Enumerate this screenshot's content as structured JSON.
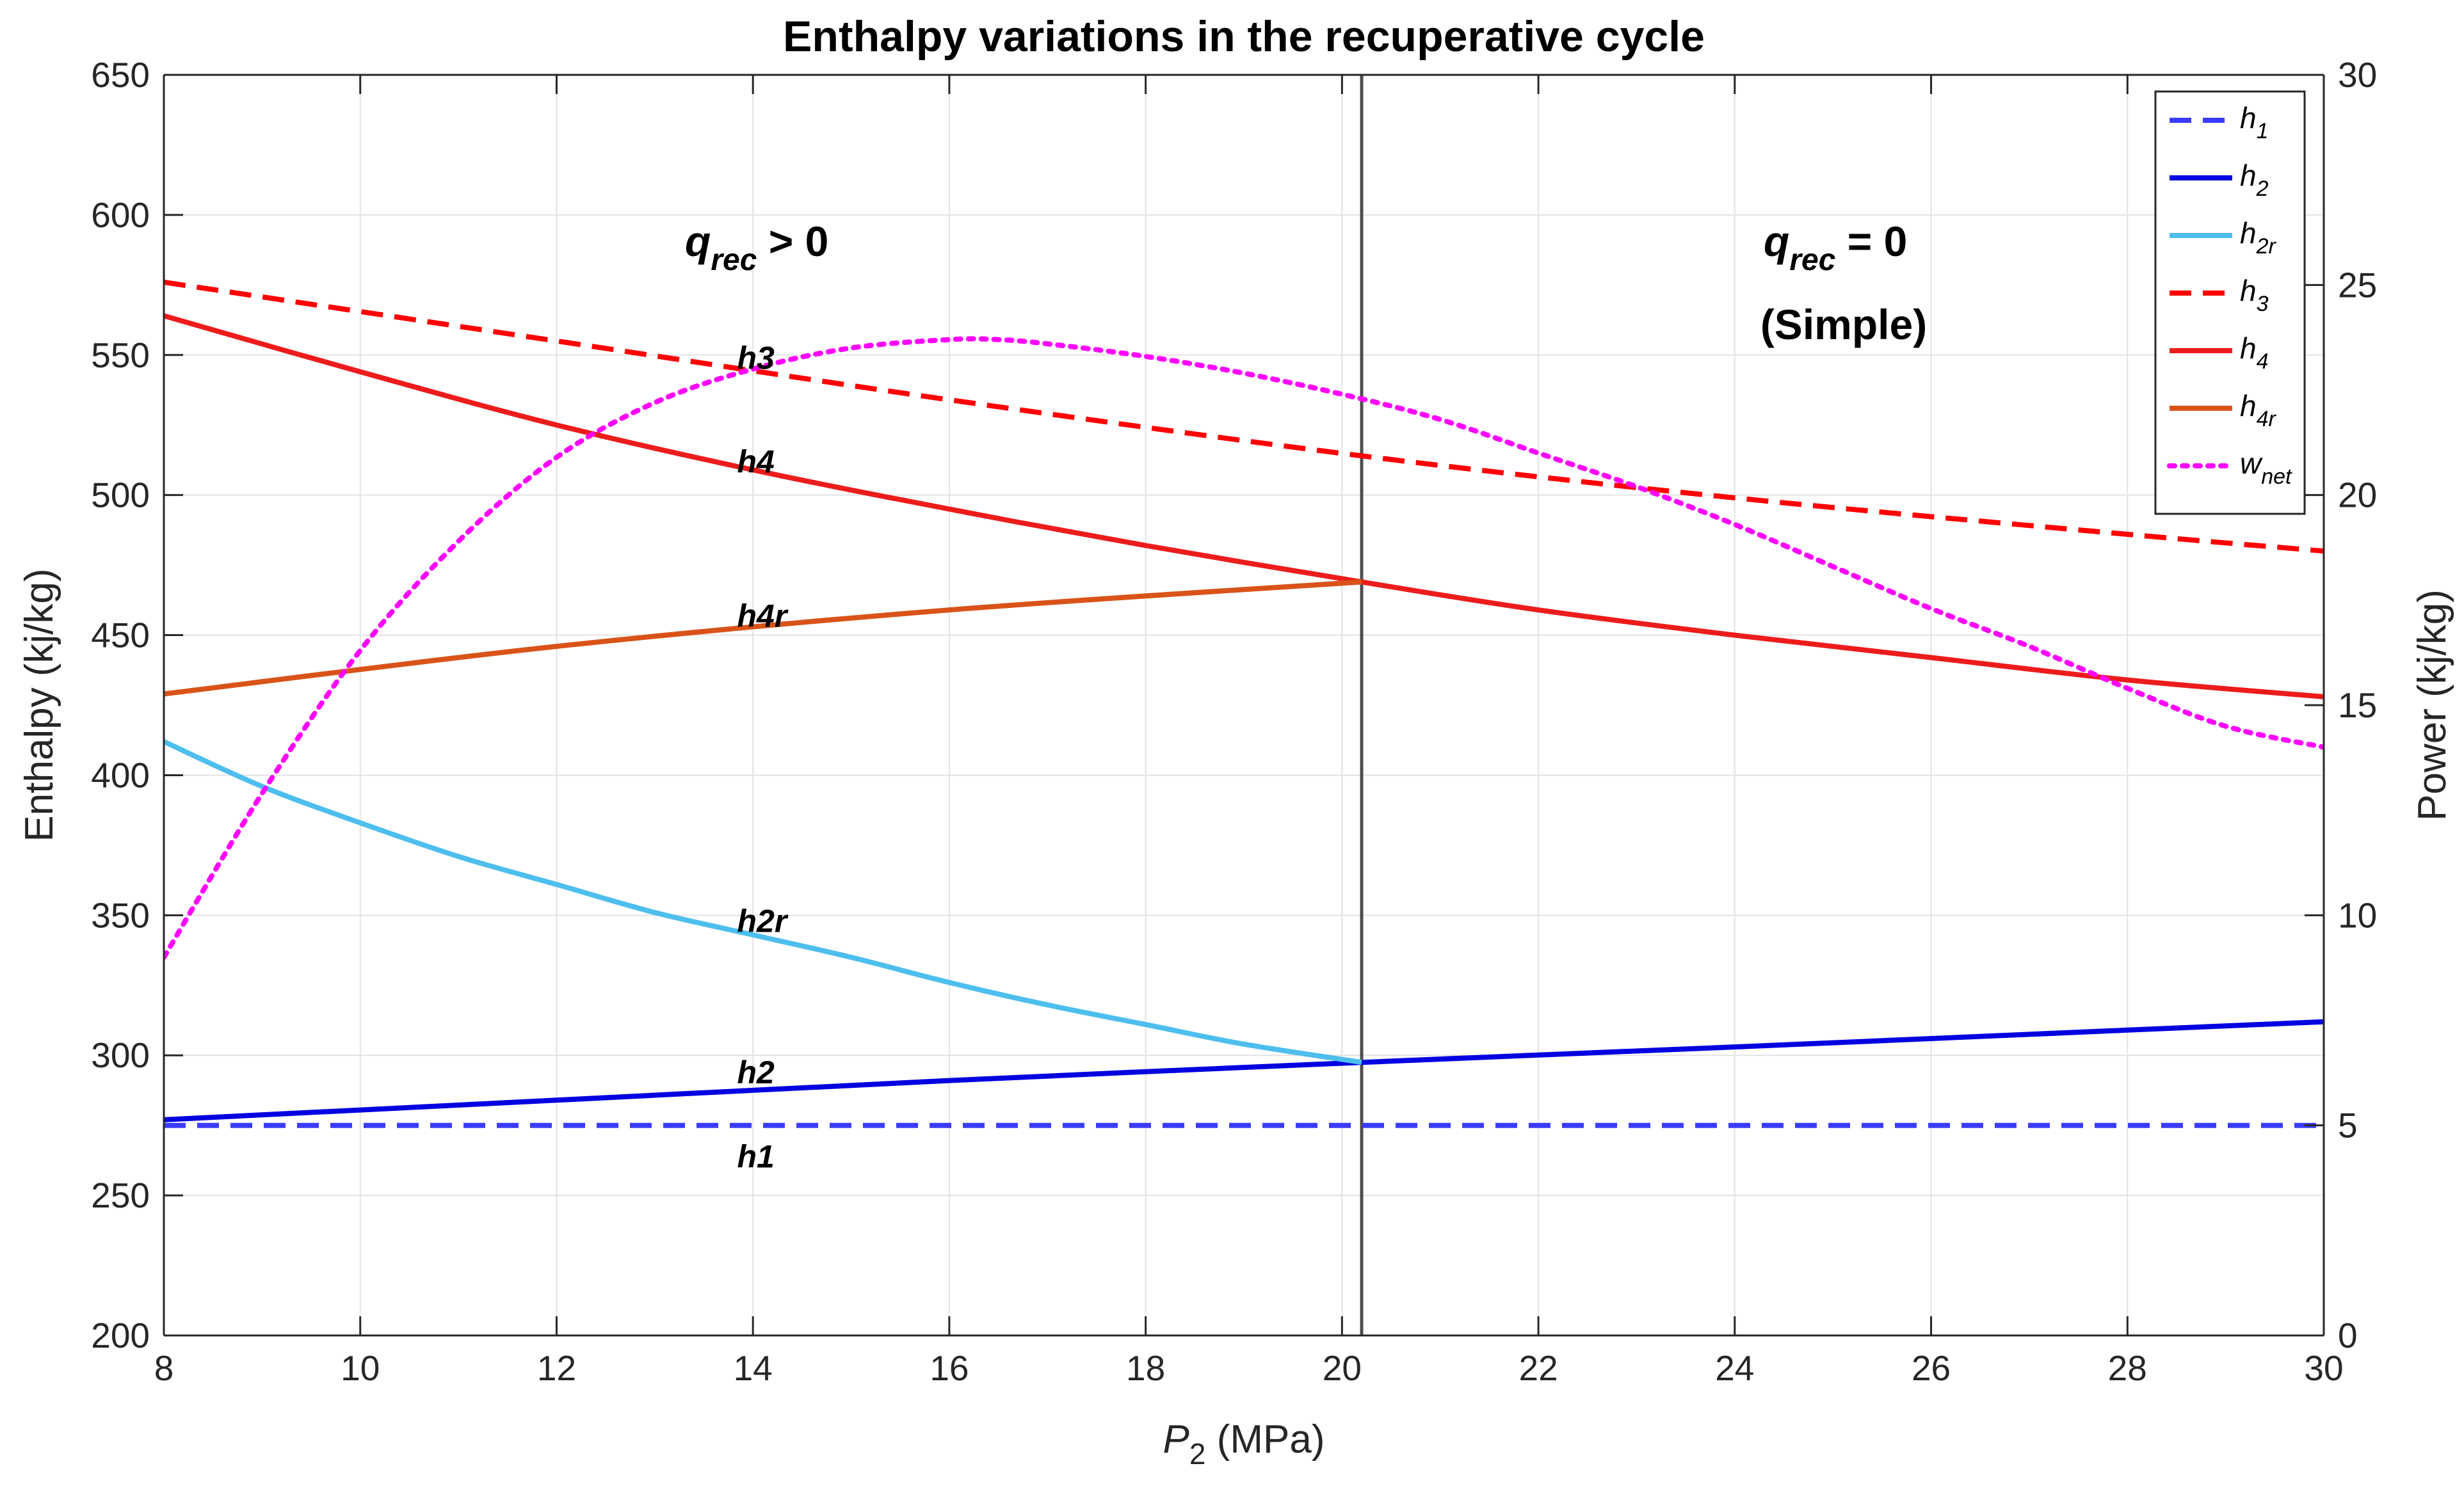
{
  "chart_data": {
    "type": "line",
    "title": "Enthalpy variations in the recuperative cycle",
    "xlabel": "P",
    "xlabel_sub": "2",
    "xlabel_unit": " (MPa)",
    "ylabel": "Enthalpy (kj/kg)",
    "y2label": "Power (kj/kg)",
    "xlim": [
      8,
      30
    ],
    "ylim": [
      200,
      650
    ],
    "y2lim": [
      0,
      30
    ],
    "xticks": [
      8,
      10,
      12,
      14,
      16,
      18,
      20,
      22,
      24,
      26,
      28,
      30
    ],
    "yticks": [
      200,
      250,
      300,
      350,
      400,
      450,
      500,
      550,
      600,
      650
    ],
    "y2ticks": [
      0,
      5,
      10,
      15,
      20,
      25,
      30
    ],
    "grid": true,
    "legend_position": "top-right",
    "series": [
      {
        "name": "h1",
        "legend_main": "h",
        "legend_sub": "1",
        "axis": "left",
        "style": "dashed",
        "color": "#3b3bff",
        "x": [
          8,
          30
        ],
        "values": [
          275,
          275
        ]
      },
      {
        "name": "h2",
        "legend_main": "h",
        "legend_sub": "2",
        "axis": "left",
        "style": "solid",
        "color": "#0000e0",
        "x": [
          8,
          12,
          16,
          20.2,
          24,
          28,
          30
        ],
        "values": [
          277,
          284,
          291,
          297.5,
          303,
          309,
          312
        ]
      },
      {
        "name": "h2r",
        "legend_main": "h",
        "legend_sub": "2r",
        "axis": "left",
        "style": "solid",
        "color": "#4dbeee",
        "x": [
          8,
          9,
          10,
          11,
          12,
          13,
          14,
          15,
          16,
          17,
          18,
          19,
          20.2
        ],
        "values": [
          412,
          396,
          383,
          371,
          361,
          351,
          343,
          335,
          326,
          318,
          311,
          304,
          297.5
        ]
      },
      {
        "name": "h3",
        "legend_main": "h",
        "legend_sub": "3",
        "axis": "left",
        "style": "dashed",
        "color": "#ff0000",
        "x": [
          8,
          12,
          16,
          20.2,
          24,
          28,
          30
        ],
        "values": [
          576,
          555,
          534,
          514,
          499,
          486,
          480
        ]
      },
      {
        "name": "h4",
        "legend_main": "h",
        "legend_sub": "4",
        "axis": "left",
        "style": "solid",
        "color": "#ed1c1c",
        "x": [
          8,
          10,
          12,
          14,
          16,
          18,
          20.2,
          22,
          24,
          26,
          28,
          30
        ],
        "values": [
          564,
          544,
          525,
          509,
          495,
          482,
          469,
          459,
          450,
          442,
          434,
          428
        ]
      },
      {
        "name": "h4r",
        "legend_main": "h",
        "legend_sub": "4r",
        "axis": "left",
        "style": "solid",
        "color": "#d95319",
        "x": [
          8,
          12,
          16,
          20.2
        ],
        "values": [
          429,
          446,
          459,
          469
        ]
      },
      {
        "name": "wnet",
        "legend_main": "w",
        "legend_sub": "net",
        "axis": "right",
        "style": "dotted",
        "color": "#ff00ff",
        "x": [
          8,
          9,
          10,
          11,
          12,
          13,
          14,
          15,
          16,
          16.5,
          17,
          18,
          19,
          20,
          21,
          22,
          23,
          24,
          25,
          26,
          27,
          28,
          29,
          30
        ],
        "values": [
          9.0,
          12.9,
          16.3,
          18.9,
          20.9,
          22.2,
          23.0,
          23.5,
          23.7,
          23.7,
          23.6,
          23.3,
          22.9,
          22.4,
          21.8,
          21.0,
          20.2,
          19.3,
          18.3,
          17.3,
          16.4,
          15.4,
          14.5,
          14.0
        ]
      }
    ],
    "vline": {
      "x": 20.2,
      "color": "#4d4d4d"
    },
    "annotations": {
      "left_main": "q",
      "left_sub": "rec",
      "left_rest": " > 0",
      "right_main": "q",
      "right_sub": "rec",
      "right_rest": " = 0",
      "right_line2": "(Simple)"
    },
    "curve_labels": [
      {
        "text": "h3",
        "x": 14.1,
        "y": 545
      },
      {
        "text": "h4",
        "x": 14.1,
        "y": 508
      },
      {
        "text": "h4r",
        "x": 14.1,
        "y": 453
      },
      {
        "text": "h2r",
        "x": 14.1,
        "y": 344
      },
      {
        "text": "h2",
        "x": 14.1,
        "y": 290
      },
      {
        "text": "h1",
        "x": 14.1,
        "y": 260
      }
    ]
  }
}
